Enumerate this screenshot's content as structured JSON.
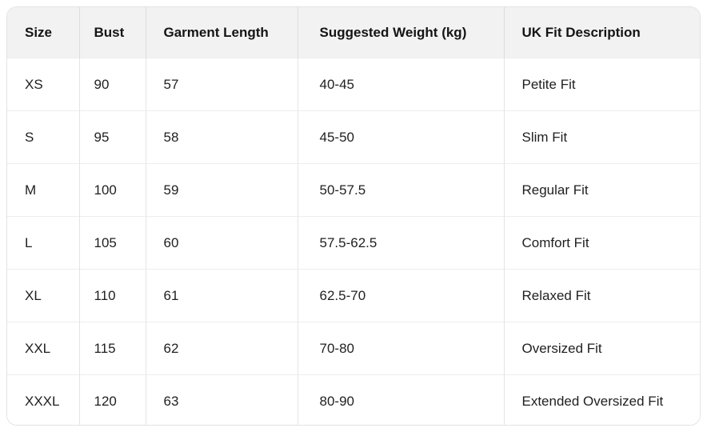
{
  "table": {
    "columns": [
      {
        "label": "Size"
      },
      {
        "label": "Bust"
      },
      {
        "label": "Garment Length"
      },
      {
        "label": "Suggested Weight (kg)"
      },
      {
        "label": "UK Fit Description"
      }
    ],
    "rows": [
      {
        "size": "XS",
        "bust": "90",
        "garment_length": "57",
        "suggested_weight_kg": "40-45",
        "uk_fit_description": "Petite Fit"
      },
      {
        "size": "S",
        "bust": "95",
        "garment_length": "58",
        "suggested_weight_kg": "45-50",
        "uk_fit_description": "Slim Fit"
      },
      {
        "size": "M",
        "bust": "100",
        "garment_length": "59",
        "suggested_weight_kg": "50-57.5",
        "uk_fit_description": "Regular Fit"
      },
      {
        "size": "L",
        "bust": "105",
        "garment_length": "60",
        "suggested_weight_kg": "57.5-62.5",
        "uk_fit_description": "Comfort Fit"
      },
      {
        "size": "XL",
        "bust": "110",
        "garment_length": "61",
        "suggested_weight_kg": "62.5-70",
        "uk_fit_description": "Relaxed Fit"
      },
      {
        "size": "XXL",
        "bust": "115",
        "garment_length": "62",
        "suggested_weight_kg": "70-80",
        "uk_fit_description": "Oversized Fit"
      },
      {
        "size": "XXXL",
        "bust": "120",
        "garment_length": "63",
        "suggested_weight_kg": "80-90",
        "uk_fit_description": "Extended Oversized Fit"
      }
    ]
  },
  "colors": {
    "header_bg": "#f2f2f2",
    "card_border": "#e3e3e3",
    "header_column_border": "#dcdcdc",
    "body_column_border": "#e4e4e4",
    "row_border": "#ededed",
    "text": "#1f1f1f"
  }
}
